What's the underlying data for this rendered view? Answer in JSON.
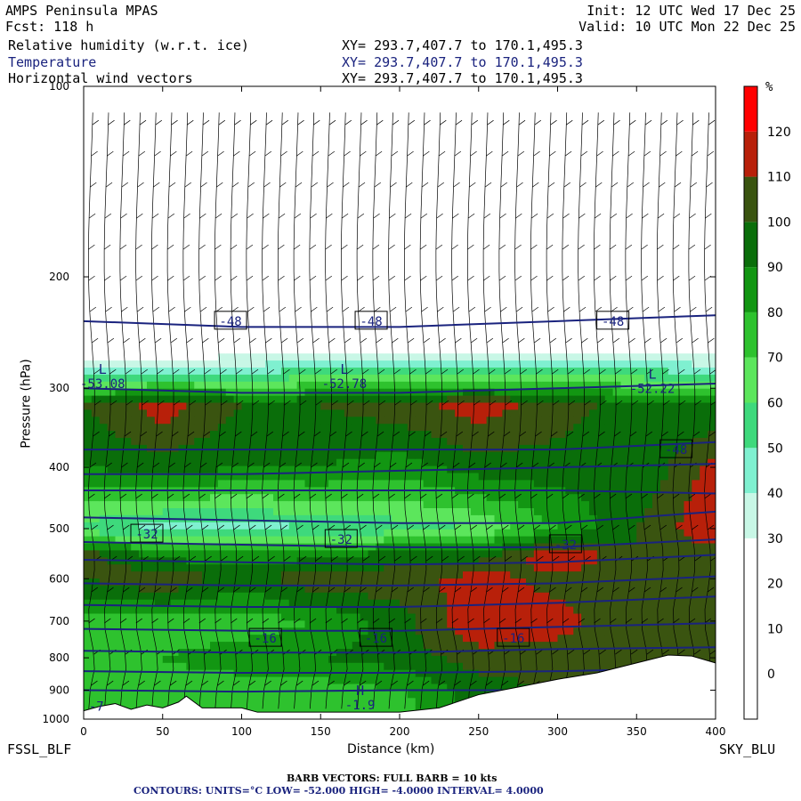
{
  "header": {
    "model": "AMPS Peninsula MPAS",
    "fcst": "Fcst: 118 h",
    "init": "Init: 12 UTC Wed 17 Dec 25",
    "valid": "Valid: 10 UTC Mon 22 Dec 25",
    "layers": [
      {
        "label": "Relative humidity (w.r.t. ice)",
        "xy": "XY= 293.7,407.7 to 170.1,495.3"
      },
      {
        "label": "Temperature",
        "xy": "XY= 293.7,407.7 to 170.1,495.3"
      },
      {
        "label": "Horizontal wind vectors",
        "xy": "XY= 293.7,407.7 to 170.1,495.3"
      }
    ]
  },
  "endpoints": {
    "left": "FSSL_BLF",
    "right": "SKY_BLU"
  },
  "footer": {
    "barb": "BARB VECTORS: FULL BARB = 10 kts",
    "contours": "CONTOURS: UNITS=°C LOW= -52.000 HIGH= -4.0000 INTERVAL= 4.0000"
  },
  "colors": {
    "contour": "#1a237e",
    "terrain": "#ffffff",
    "rh_levels": [
      "#ffffff",
      "#ffffff",
      "#ffffff",
      "#ffffff",
      "#c8f7e6",
      "#7ff0d0",
      "#3ed97c",
      "#5ce65c",
      "#2ec22e",
      "#129612",
      "#0a6e0a",
      "#3a5410",
      "#b8200a",
      "#ff0000"
    ]
  },
  "chart_data": {
    "type": "heatmap",
    "title": "Relative humidity (w.r.t. ice)",
    "xlabel": "Distance (km)",
    "ylabel": "Pressure (hPa)",
    "xlim": [
      0,
      400
    ],
    "ylim": [
      1000,
      100
    ],
    "yscale": "log",
    "xticks": [
      0,
      50,
      100,
      150,
      200,
      250,
      300,
      350,
      400
    ],
    "yticks": [
      100,
      200,
      300,
      400,
      500,
      600,
      700,
      800,
      900,
      1000
    ],
    "colorbar": {
      "unit": "%",
      "levels": [
        -10,
        0,
        10,
        20,
        30,
        40,
        50,
        60,
        70,
        80,
        90,
        100,
        110,
        120,
        130
      ],
      "labels": [
        0,
        10,
        20,
        30,
        40,
        50,
        60,
        70,
        80,
        90,
        100,
        110,
        120
      ],
      "unit_label": "%"
    },
    "rh_profiles": [
      {
        "x": 0,
        "p": [
          150,
          250,
          280,
          320,
          400,
          500,
          550,
          600,
          700,
          800,
          900,
          950
        ],
        "rh": [
          10,
          10,
          40,
          100,
          90,
          55,
          105,
          100,
          75,
          80,
          70,
          70
        ]
      },
      {
        "x": 50,
        "p": [
          150,
          250,
          280,
          320,
          400,
          500,
          550,
          600,
          700,
          800,
          900,
          950
        ],
        "rh": [
          10,
          10,
          40,
          115,
          95,
          45,
          85,
          110,
          75,
          80,
          75,
          70
        ]
      },
      {
        "x": 100,
        "p": [
          150,
          250,
          280,
          320,
          400,
          500,
          550,
          600,
          700,
          800,
          900,
          950
        ],
        "rh": [
          10,
          10,
          45,
          100,
          90,
          45,
          85,
          95,
          75,
          85,
          75,
          70
        ]
      },
      {
        "x": 150,
        "p": [
          150,
          250,
          280,
          320,
          400,
          500,
          550,
          600,
          700,
          800,
          900,
          950
        ],
        "rh": [
          10,
          10,
          50,
          100,
          90,
          50,
          85,
          110,
          80,
          90,
          75,
          75
        ]
      },
      {
        "x": 200,
        "p": [
          150,
          250,
          280,
          320,
          400,
          500,
          550,
          600,
          700,
          800,
          900,
          950
        ],
        "rh": [
          10,
          10,
          50,
          105,
          85,
          55,
          95,
          105,
          95,
          95,
          80,
          75
        ]
      },
      {
        "x": 250,
        "p": [
          150,
          250,
          280,
          320,
          400,
          500,
          550,
          600,
          700,
          800,
          900,
          950
        ],
        "rh": [
          10,
          10,
          55,
          115,
          95,
          60,
          95,
          115,
          120,
          105,
          95,
          95
        ]
      },
      {
        "x": 300,
        "p": [
          150,
          250,
          280,
          320,
          400,
          500,
          550,
          600,
          700,
          800,
          900,
          950
        ],
        "rh": [
          10,
          10,
          55,
          105,
          95,
          80,
          120,
          105,
          115,
          105,
          100,
          100
        ]
      },
      {
        "x": 350,
        "p": [
          150,
          250,
          280,
          320,
          400,
          500,
          550,
          600,
          700,
          800,
          900,
          950
        ],
        "rh": [
          10,
          10,
          50,
          95,
          90,
          100,
          100,
          110,
          100,
          100,
          100,
          100
        ]
      },
      {
        "x": 400,
        "p": [
          150,
          250,
          280,
          320,
          400,
          500,
          550,
          600,
          700,
          800,
          900,
          950
        ],
        "rh": [
          10,
          10,
          45,
          90,
          115,
          120,
          105,
          100,
          100,
          100,
          100,
          100
        ]
      }
    ],
    "terrain": [
      {
        "x": 0,
        "p": 970
      },
      {
        "x": 10,
        "p": 955
      },
      {
        "x": 20,
        "p": 945
      },
      {
        "x": 30,
        "p": 965
      },
      {
        "x": 40,
        "p": 950
      },
      {
        "x": 50,
        "p": 960
      },
      {
        "x": 60,
        "p": 940
      },
      {
        "x": 65,
        "p": 920
      },
      {
        "x": 75,
        "p": 960
      },
      {
        "x": 90,
        "p": 960
      },
      {
        "x": 100,
        "p": 960
      },
      {
        "x": 110,
        "p": 975
      },
      {
        "x": 150,
        "p": 975
      },
      {
        "x": 200,
        "p": 975
      },
      {
        "x": 225,
        "p": 960
      },
      {
        "x": 250,
        "p": 915
      },
      {
        "x": 275,
        "p": 890
      },
      {
        "x": 300,
        "p": 865
      },
      {
        "x": 325,
        "p": 845
      },
      {
        "x": 350,
        "p": 815
      },
      {
        "x": 370,
        "p": 792
      },
      {
        "x": 385,
        "p": 795
      },
      {
        "x": 400,
        "p": 815
      }
    ],
    "temperature_contours": [
      {
        "t": -48,
        "x": [
          0,
          100,
          200,
          300,
          400
        ],
        "p": [
          235,
          240,
          240,
          235,
          230
        ]
      },
      {
        "t": -52,
        "x": [
          0,
          100,
          200,
          300,
          400
        ],
        "p": [
          300,
          305,
          305,
          300,
          295
        ]
      },
      {
        "t": -48,
        "x": [
          0,
          100,
          200,
          300,
          400
        ],
        "p": [
          375,
          375,
          375,
          375,
          365
        ]
      },
      {
        "t": -44,
        "x": [
          0,
          100,
          200,
          300,
          400
        ],
        "p": [
          410,
          410,
          405,
          400,
          395
        ]
      },
      {
        "t": -40,
        "x": [
          0,
          100,
          200,
          300,
          400
        ],
        "p": [
          435,
          435,
          435,
          435,
          440
        ]
      },
      {
        "t": -36,
        "x": [
          0,
          100,
          200,
          300,
          400
        ],
        "p": [
          480,
          485,
          490,
          490,
          470
        ]
      },
      {
        "t": -32,
        "x": [
          0,
          100,
          200,
          300,
          400
        ],
        "p": [
          525,
          530,
          535,
          535,
          520
        ]
      },
      {
        "t": -28,
        "x": [
          0,
          100,
          200,
          300,
          400
        ],
        "p": [
          560,
          565,
          570,
          565,
          550
        ]
      },
      {
        "t": -24,
        "x": [
          0,
          100,
          200,
          300,
          400
        ],
        "p": [
          610,
          615,
          615,
          610,
          595
        ]
      },
      {
        "t": -20,
        "x": [
          0,
          100,
          200,
          300,
          400
        ],
        "p": [
          660,
          665,
          665,
          655,
          640
        ]
      },
      {
        "t": -16,
        "x": [
          0,
          100,
          200,
          300,
          400
        ],
        "p": [
          720,
          725,
          725,
          715,
          705
        ]
      },
      {
        "t": -12,
        "x": [
          0,
          100,
          200,
          300,
          400
        ],
        "p": [
          780,
          785,
          785,
          775,
          770
        ]
      },
      {
        "t": -8,
        "x": [
          0,
          100,
          200,
          300,
          400
        ],
        "p": [
          840,
          845,
          845,
          840,
          830
        ]
      },
      {
        "t": -4,
        "x": [
          0,
          100,
          200,
          300,
          400
        ],
        "p": [
          900,
          905,
          900,
          900,
          890
        ]
      }
    ],
    "contour_labels": [
      {
        "text": "-48",
        "x": 93,
        "p": 235
      },
      {
        "text": "-48",
        "x": 182,
        "p": 235
      },
      {
        "text": "-48",
        "x": 335,
        "p": 235
      },
      {
        "text": "-48",
        "x": 375,
        "p": 375
      },
      {
        "text": "-32",
        "x": 40,
        "p": 510
      },
      {
        "text": "-32",
        "x": 163,
        "p": 520
      },
      {
        "text": "-32",
        "x": 305,
        "p": 530
      },
      {
        "text": "-16",
        "x": 115,
        "p": 745
      },
      {
        "text": "-16",
        "x": 185,
        "p": 745
      },
      {
        "text": "-16",
        "x": 272,
        "p": 745
      }
    ],
    "extrema": [
      {
        "kind": "L",
        "value": "-53.08",
        "x": 12,
        "p": 300
      },
      {
        "kind": "L",
        "value": "-52.78",
        "x": 165,
        "p": 300
      },
      {
        "kind": "L",
        "value": "-52.22",
        "x": 360,
        "p": 305
      },
      {
        "kind": "H",
        "value": "-1.9",
        "x": 175,
        "p": 965
      },
      {
        "kind": "",
        "value": "-7",
        "x": 8,
        "p": 970
      }
    ]
  }
}
